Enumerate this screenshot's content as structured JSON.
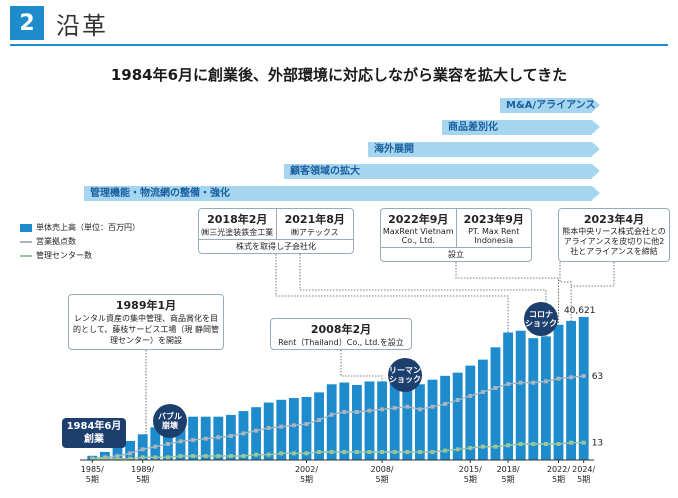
{
  "header": {
    "number": "2",
    "title": "沿革"
  },
  "headline": "1984年6月に創業後、外部環境に対応しながら業容を拡大してきた",
  "bands": [
    {
      "label": "M&A/アライアンス",
      "left": 500,
      "top": 98
    },
    {
      "label": "商品差別化",
      "left": 442,
      "top": 120
    },
    {
      "label": "海外展開",
      "left": 368,
      "top": 142
    },
    {
      "label": "顧客領域の拡大",
      "left": 284,
      "top": 164
    },
    {
      "label": "管理機能・物流網の整備・強化",
      "left": 84,
      "top": 186
    }
  ],
  "legend": {
    "sales": "単体売上高（単位：百万円）",
    "branches": "営業拠点数",
    "centers": "管理センター数"
  },
  "callouts": {
    "c2018_year": "2018年2月",
    "c2018_text": "㈱三光塗装鉄金工業",
    "c2021_year": "2021年8月",
    "c2021_text": "㈱アテックス",
    "c_acq_foot": "株式を取得し子会社化",
    "c2022_year": "2022年9月",
    "c2022_text": "MaxRent Vietnam Co., Ltd.",
    "c2023_year": "2023年9月",
    "c2023_text": "PT. Max Rent Indonesia",
    "c_est_foot": "設立",
    "c2023apr_year": "2023年4月",
    "c2023apr_text": "熊本中央リース株式会社とのアライアンスを皮切りに他2社とアライアンスを締結",
    "c1989_year": "1989年1月",
    "c1989_text": "レンタル資産の集中管理、商品賞化を目的として、藤枝サービス工場（現 静岡管理センター）を開設",
    "c2008_year": "2008年2月",
    "c2008_text": "Rent（Thailand）Co., Ltd.を設立",
    "c1984_line1": "1984年6月",
    "c1984_line2": "創業"
  },
  "bubbles": {
    "bubble_line1": "バブル",
    "bubble_line2": "崩壊",
    "lehman_line1": "リーマン",
    "lehman_line2": "ショック",
    "corona_line1": "コロナ",
    "corona_line2": "ショック"
  },
  "chart_data": {
    "type": "bar",
    "categories": [
      "1985",
      "1986",
      "1987",
      "1988",
      "1989",
      "1990",
      "1991",
      "1992",
      "1993",
      "1994",
      "1995",
      "1996",
      "1997",
      "1998",
      "1999",
      "2000",
      "2001",
      "2002",
      "2003",
      "2004",
      "2005",
      "2006",
      "2007",
      "2008",
      "2009",
      "2010",
      "2011",
      "2012",
      "2013",
      "2014",
      "2015",
      "2016",
      "2017",
      "2018",
      "2019",
      "2020",
      "2021",
      "2022",
      "2023",
      "2024"
    ],
    "x_tick_labels": [
      {
        "index": 0,
        "line1": "1985/",
        "line2": "5期"
      },
      {
        "index": 4,
        "line1": "1989/",
        "line2": "5期"
      },
      {
        "index": 17,
        "line1": "2002/",
        "line2": "5期"
      },
      {
        "index": 23,
        "line1": "2008/",
        "line2": "5期"
      },
      {
        "index": 30,
        "line1": "2015/",
        "line2": "5期"
      },
      {
        "index": 33,
        "line1": "2018/",
        "line2": "5期"
      },
      {
        "index": 37,
        "line1": "2022/",
        "line2": "5期"
      },
      {
        "index": 39,
        "line1": "2024/",
        "line2": "5期"
      }
    ],
    "series": [
      {
        "name": "単体売上高（単位：百万円）",
        "values": [
          1200,
          2300,
          3800,
          5400,
          7300,
          9300,
          11000,
          12000,
          12300,
          12300,
          12300,
          12800,
          13900,
          15000,
          16300,
          17100,
          17600,
          17900,
          19200,
          21500,
          22000,
          21300,
          22300,
          22300,
          22800,
          23200,
          21500,
          22800,
          23900,
          24800,
          26800,
          28500,
          32000,
          36200,
          36700,
          34600,
          35100,
          38400,
          39500,
          40621
        ]
      },
      {
        "name": "営業拠点数",
        "values": [
          1,
          2,
          3,
          5,
          8,
          10,
          12,
          14,
          15,
          16,
          17,
          18,
          20,
          22,
          24,
          25,
          26,
          27,
          30,
          34,
          36,
          36,
          37,
          38,
          39,
          40,
          38,
          40,
          42,
          45,
          48,
          51,
          54,
          57,
          58,
          58,
          59,
          61,
          62,
          63
        ]
      },
      {
        "name": "管理センター数",
        "values": [
          1,
          1,
          1,
          1,
          2,
          2,
          2,
          3,
          3,
          3,
          3,
          3,
          3,
          4,
          4,
          5,
          5,
          5,
          6,
          6,
          6,
          6,
          6,
          6,
          6,
          6,
          6,
          6,
          7,
          8,
          9,
          10,
          10,
          11,
          12,
          12,
          12,
          12,
          13,
          13
        ]
      }
    ],
    "data_labels": {
      "sales_last": "40,621",
      "branches_last": "63",
      "centers_last": "13"
    },
    "ylim_sales": [
      0,
      46000
    ],
    "ylim_counts": [
      0,
      150
    ]
  }
}
